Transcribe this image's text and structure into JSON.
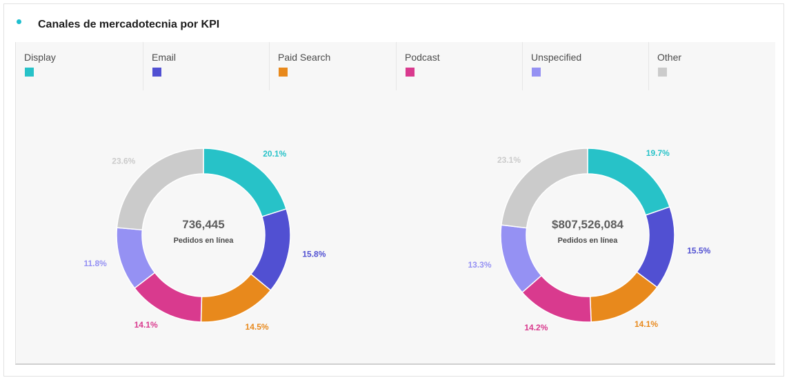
{
  "panel": {
    "title": "Canales de mercadotecnia por KPI"
  },
  "legend": [
    {
      "label": "Display",
      "color": "#27c2c8"
    },
    {
      "label": "Email",
      "color": "#5150d2"
    },
    {
      "label": "Paid Search",
      "color": "#e8891c"
    },
    {
      "label": "Podcast",
      "color": "#d93a8e"
    },
    {
      "label": "Unspecified",
      "color": "#9591f3"
    },
    {
      "label": "Other",
      "color": "#cbcbcb"
    }
  ],
  "chart_data": [
    {
      "type": "pie",
      "donut": true,
      "center_value": "736,445",
      "center_label": "Pedidos en línea",
      "slices": [
        {
          "name": "Display",
          "value": 20.1,
          "label": "20.1%"
        },
        {
          "name": "Email",
          "value": 15.8,
          "label": "15.8%"
        },
        {
          "name": "Paid Search",
          "value": 14.5,
          "label": "14.5%"
        },
        {
          "name": "Podcast",
          "value": 14.1,
          "label": "14.1%"
        },
        {
          "name": "Unspecified",
          "value": 11.8,
          "label": "11.8%"
        },
        {
          "name": "Other",
          "value": 23.6,
          "label": "23.6%"
        }
      ]
    },
    {
      "type": "pie",
      "donut": true,
      "center_value": "$807,526,084",
      "center_label": "Pedidos en línea",
      "slices": [
        {
          "name": "Display",
          "value": 19.7,
          "label": "19.7%"
        },
        {
          "name": "Email",
          "value": 15.5,
          "label": "15.5%"
        },
        {
          "name": "Paid Search",
          "value": 14.1,
          "label": "14.1%"
        },
        {
          "name": "Podcast",
          "value": 14.2,
          "label": "14.2%"
        },
        {
          "name": "Unspecified",
          "value": 13.3,
          "label": "13.3%"
        },
        {
          "name": "Other",
          "value": 23.1,
          "label": "23.1%"
        }
      ]
    }
  ]
}
